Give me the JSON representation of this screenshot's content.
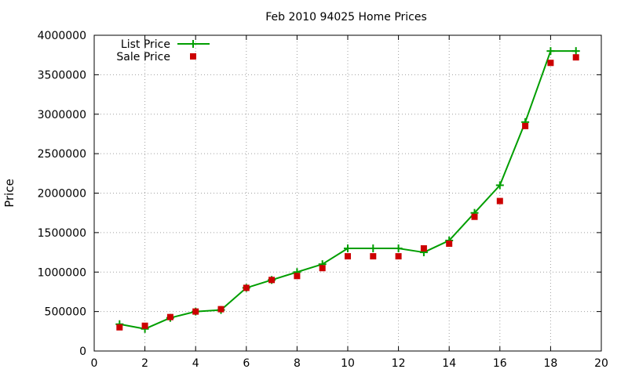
{
  "chart_data": {
    "type": "line",
    "title": "Feb 2010 94025 Home Prices",
    "xlabel": "",
    "ylabel": "Price",
    "xlim": [
      0,
      20
    ],
    "ylim": [
      0,
      4000000
    ],
    "x_ticks": [
      0,
      2,
      4,
      6,
      8,
      10,
      12,
      14,
      16,
      18,
      20
    ],
    "y_ticks": [
      0,
      500000,
      1000000,
      1500000,
      2000000,
      2500000,
      3000000,
      3500000,
      4000000
    ],
    "grid": true,
    "legend_position": "top-left",
    "series": [
      {
        "name": "List Price",
        "style": "line-with-plus-markers",
        "color": "#009e00",
        "x": [
          1,
          2,
          3,
          4,
          5,
          6,
          7,
          8,
          9,
          10,
          11,
          12,
          13,
          14,
          15,
          16,
          17,
          18,
          19
        ],
        "values": [
          340000,
          280000,
          420000,
          500000,
          520000,
          800000,
          900000,
          1000000,
          1100000,
          1300000,
          1300000,
          1300000,
          1250000,
          1400000,
          1750000,
          2100000,
          2900000,
          3800000,
          3800000
        ]
      },
      {
        "name": "Sale Price",
        "style": "square-markers",
        "color": "#cc0000",
        "x": [
          1,
          2,
          3,
          4,
          5,
          6,
          7,
          8,
          9,
          10,
          11,
          12,
          13,
          14,
          15,
          16,
          17,
          18,
          19
        ],
        "values": [
          300000,
          320000,
          430000,
          500000,
          530000,
          800000,
          900000,
          950000,
          1050000,
          1200000,
          1200000,
          1200000,
          1300000,
          1360000,
          1700000,
          1900000,
          2850000,
          3650000,
          3720000
        ]
      }
    ]
  }
}
